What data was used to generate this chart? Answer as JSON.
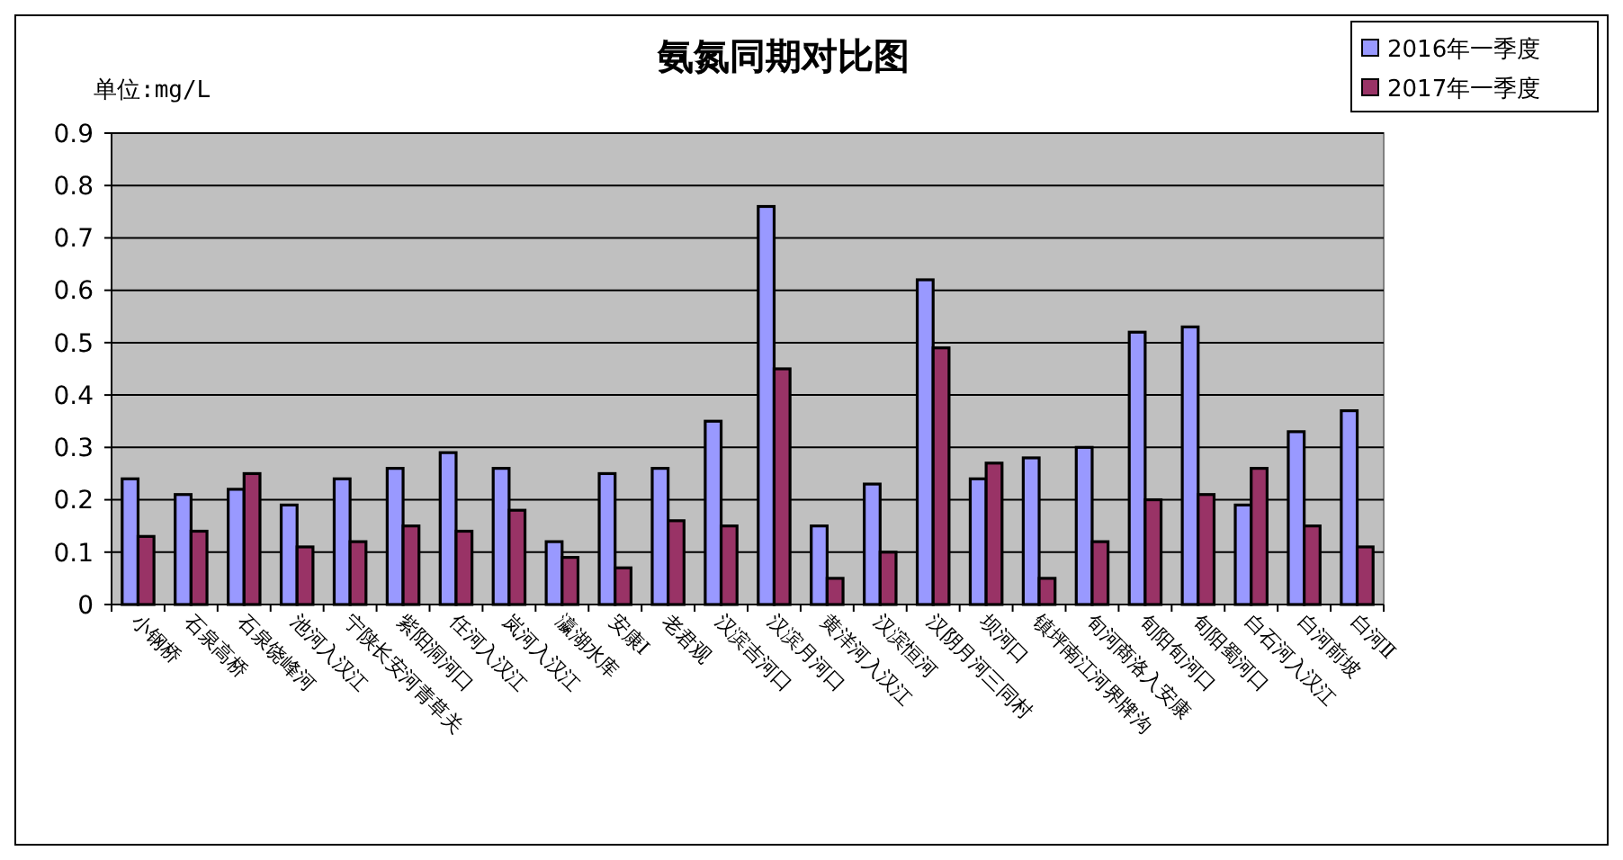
{
  "chart_data": {
    "type": "bar",
    "title": "氨氮同期对比图",
    "ylabel": "单位:mg/L",
    "categories": [
      "小钢桥",
      "石泉高桥",
      "石泉饶峰河",
      "池河入汉江",
      "宁陕长安河青草关",
      "紫阳洞河口",
      "任河入汉江",
      "岚河入汉江",
      "瀛湖水库",
      "安康Ⅰ",
      "老君观",
      "汉滨吉河口",
      "汉滨月河口",
      "黄洋河入汉江",
      "汉滨恒河",
      "汉阴月河三同村",
      "坝河口",
      "镇坪南江河界牌沟",
      "旬河商洛入安康",
      "旬阳旬河口",
      "旬阳蜀河口",
      "白石河入汉江",
      "白河前坡",
      "白河Ⅱ"
    ],
    "series": [
      {
        "name": "2016年一季度",
        "color": "#9999ff",
        "values": [
          0.24,
          0.21,
          0.22,
          0.19,
          0.24,
          0.26,
          0.29,
          0.26,
          0.12,
          0.25,
          0.26,
          0.35,
          0.76,
          0.15,
          0.23,
          0.62,
          0.24,
          0.28,
          0.3,
          0.52,
          0.53,
          0.19,
          0.33,
          0.37
        ]
      },
      {
        "name": "2017年一季度",
        "color": "#993366",
        "values": [
          0.13,
          0.14,
          0.25,
          0.11,
          0.12,
          0.15,
          0.14,
          0.18,
          0.09,
          0.07,
          0.16,
          0.15,
          0.45,
          0.05,
          0.1,
          0.49,
          0.27,
          0.05,
          0.12,
          0.2,
          0.21,
          0.26,
          0.15,
          0.11
        ]
      }
    ],
    "ylim": [
      0,
      0.9
    ],
    "yticks": [
      0,
      0.1,
      0.2,
      0.3,
      0.4,
      0.5,
      0.6,
      0.7,
      0.8,
      0.9
    ],
    "grid": "y",
    "legend": "top right"
  }
}
